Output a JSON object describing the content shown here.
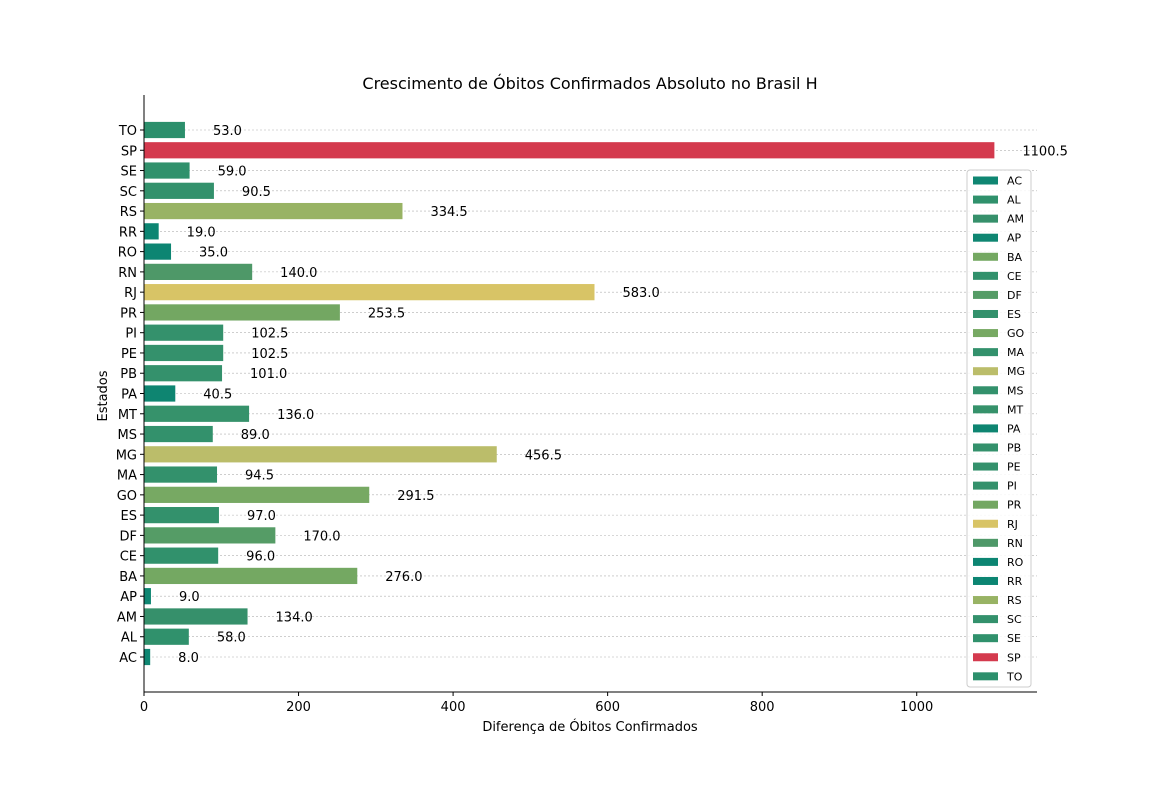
{
  "chart_data": {
    "type": "bar",
    "orientation": "horizontal",
    "title": "Crescimento de Óbitos Confirmados Absoluto no Brasil H",
    "xlabel": "Diferença de Óbitos Confirmados",
    "ylabel": "Estados",
    "xlim": [
      0,
      1155
    ],
    "x_ticks": [
      0,
      200,
      400,
      600,
      800,
      1000
    ],
    "grid": "horizontal dashed",
    "legend_position": "right",
    "categories": [
      "AC",
      "AL",
      "AM",
      "AP",
      "BA",
      "CE",
      "DF",
      "ES",
      "GO",
      "MA",
      "MG",
      "MS",
      "MT",
      "PA",
      "PB",
      "PE",
      "PI",
      "PR",
      "RJ",
      "RN",
      "RO",
      "RR",
      "RS",
      "SC",
      "SE",
      "SP",
      "TO"
    ],
    "values": [
      8.0,
      58.0,
      134.0,
      9.0,
      276.0,
      96.0,
      170.0,
      97.0,
      291.5,
      94.5,
      456.5,
      89.0,
      136.0,
      40.5,
      101.0,
      102.5,
      102.5,
      253.5,
      583.0,
      140.0,
      35.0,
      19.0,
      334.5,
      90.5,
      59.0,
      1100.5,
      53.0
    ],
    "value_labels": [
      "8.0",
      "58.0",
      "134.0",
      "9.0",
      "276.0",
      "96.0",
      "170.0",
      "97.0",
      "291.5",
      "94.5",
      "456.5",
      "89.0",
      "136.0",
      "40.5",
      "101.0",
      "102.5",
      "102.5",
      "253.5",
      "583.0",
      "140.0",
      "35.0",
      "19.0",
      "334.5",
      "90.5",
      "59.0",
      "1100.5",
      "53.0"
    ],
    "colors": [
      "#0f8672",
      "#30916c",
      "#36906b",
      "#0f8672",
      "#74a862",
      "#31916c",
      "#559c66",
      "#33916c",
      "#77a963",
      "#33916c",
      "#bbbd6a",
      "#33916c",
      "#36926b",
      "#0e8571",
      "#34916c",
      "#34916c",
      "#34916c",
      "#73a762",
      "#d8c466",
      "#4e9868",
      "#0c8572",
      "#0c8572",
      "#98b364",
      "#33916c",
      "#30916c",
      "#d43a4e",
      "#2c8f6c"
    ]
  }
}
